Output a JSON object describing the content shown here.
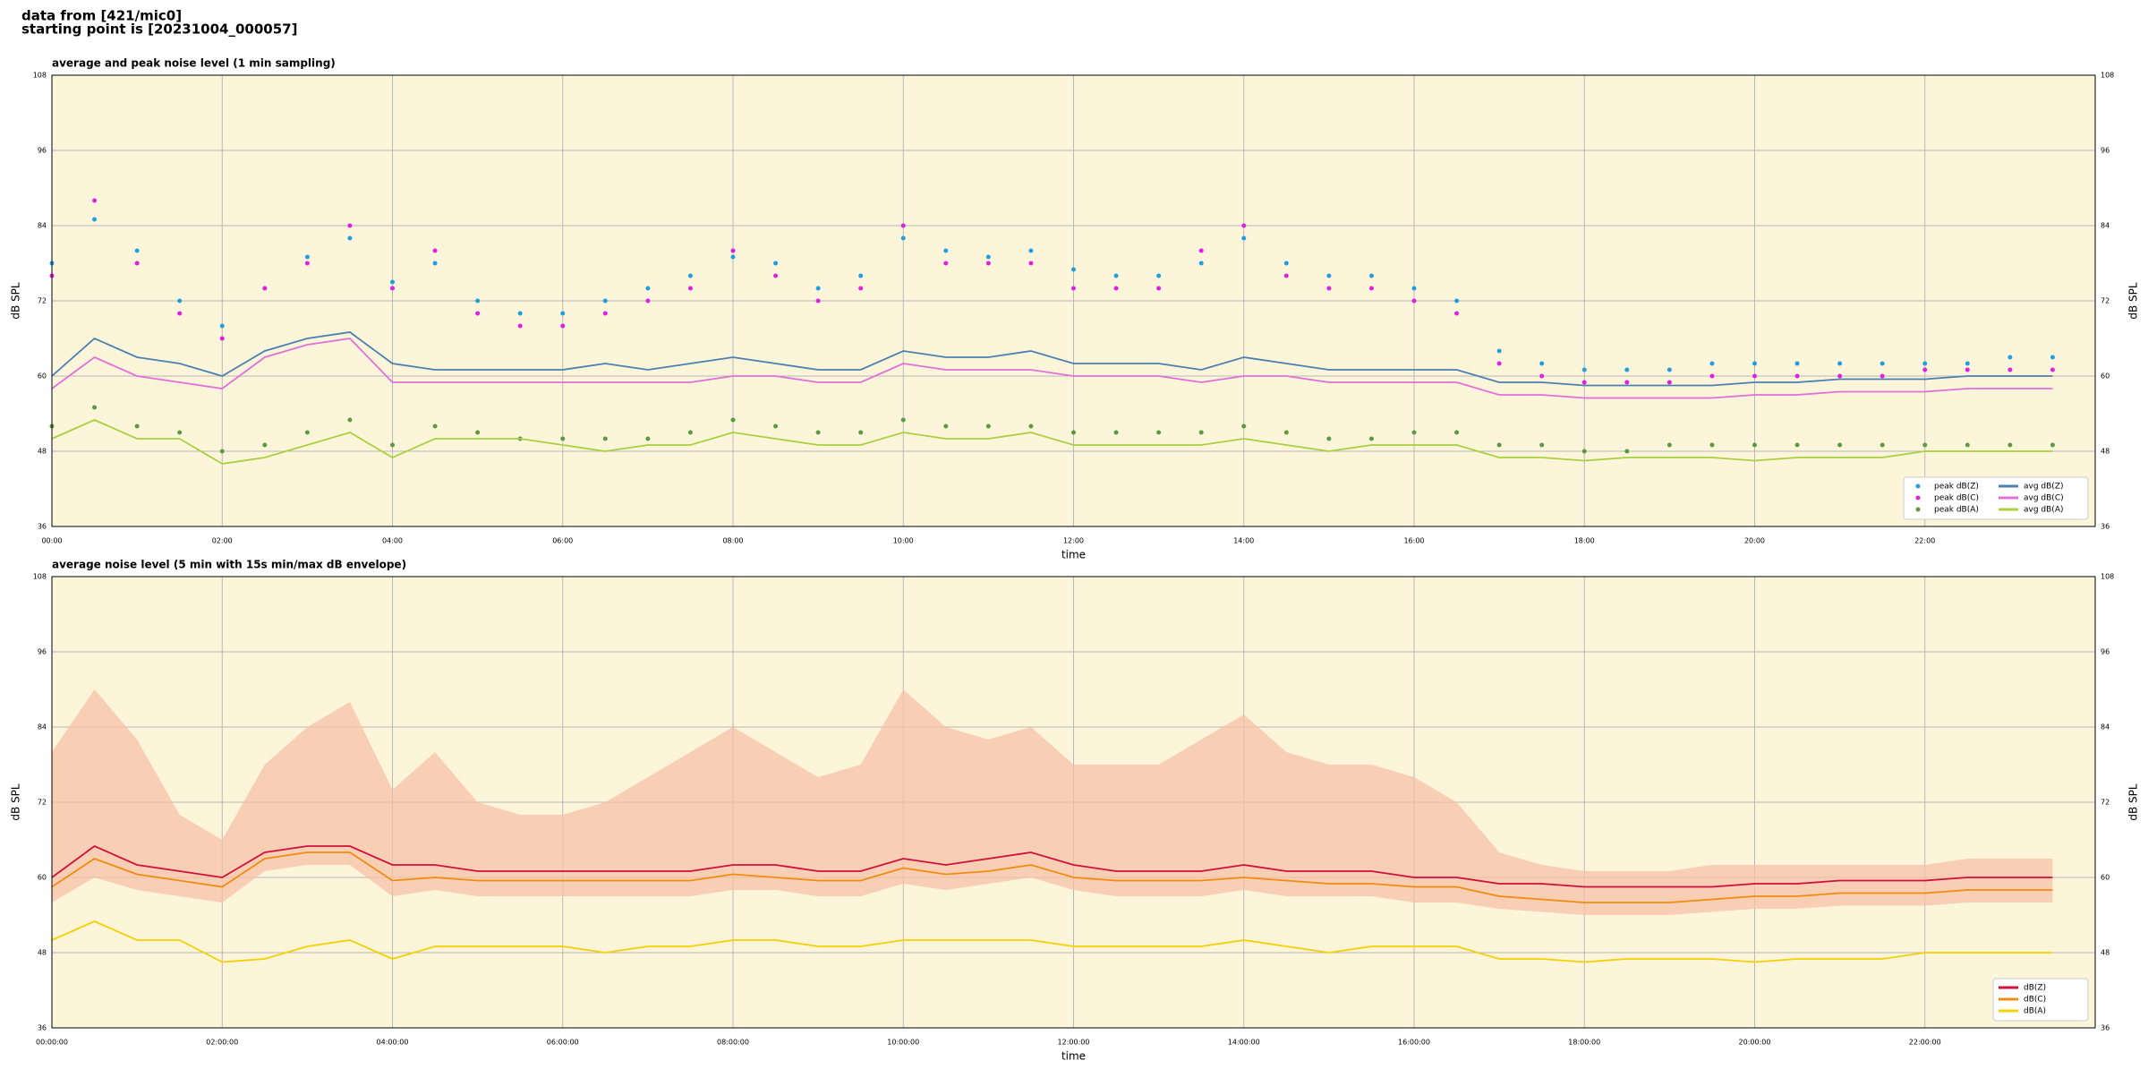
{
  "header": {
    "line1": "data from [421/mic0]",
    "line2": "starting point is [20231004_000057]"
  },
  "chart_data": [
    {
      "type": "line",
      "title": "average and peak noise level (1 min sampling)",
      "xlabel": "time",
      "ylabel": "dB SPL",
      "x": [
        0,
        0.5,
        1,
        1.5,
        2,
        2.5,
        3,
        3.5,
        4,
        4.5,
        5,
        5.5,
        6,
        6.5,
        7,
        7.5,
        8,
        8.5,
        9,
        9.5,
        10,
        10.5,
        11,
        11.5,
        12,
        12.5,
        13,
        13.5,
        14,
        14.5,
        15,
        15.5,
        16,
        16.5,
        17,
        17.5,
        18,
        18.5,
        19,
        19.5,
        20,
        20.5,
        21,
        21.5,
        22,
        22.5,
        23,
        23.5
      ],
      "xlim": [
        0,
        24
      ],
      "xticks": [
        {
          "value": 0,
          "label": "00:00"
        },
        {
          "value": 2,
          "label": "02:00"
        },
        {
          "value": 4,
          "label": "04:00"
        },
        {
          "value": 6,
          "label": "06:00"
        },
        {
          "value": 8,
          "label": "08:00"
        },
        {
          "value": 10,
          "label": "10:00"
        },
        {
          "value": 12,
          "label": "12:00"
        },
        {
          "value": 14,
          "label": "14:00"
        },
        {
          "value": 16,
          "label": "16:00"
        },
        {
          "value": 18,
          "label": "18:00"
        },
        {
          "value": 20,
          "label": "20:00"
        },
        {
          "value": 22,
          "label": "22:00"
        }
      ],
      "ylim": [
        36,
        108
      ],
      "yticks": [
        36,
        48,
        60,
        72,
        84,
        96,
        108
      ],
      "grid": true,
      "legend": "lower right",
      "legend_columns": 2,
      "series": [
        {
          "name": "peak dB(Z)",
          "type": "scatter",
          "color": "#1f9fe0",
          "values": [
            78,
            85,
            80,
            72,
            68,
            74,
            79,
            82,
            75,
            78,
            72,
            70,
            70,
            72,
            74,
            76,
            79,
            78,
            74,
            76,
            82,
            80,
            79,
            80,
            77,
            76,
            76,
            78,
            82,
            78,
            76,
            76,
            74,
            72,
            64,
            62,
            61,
            61,
            61,
            62,
            62,
            62,
            62,
            62,
            62,
            62,
            63,
            63
          ]
        },
        {
          "name": "peak dB(C)",
          "type": "scatter",
          "color": "#e020e0",
          "values": [
            76,
            88,
            78,
            70,
            66,
            74,
            78,
            84,
            74,
            80,
            70,
            68,
            68,
            70,
            72,
            74,
            80,
            76,
            72,
            74,
            84,
            78,
            78,
            78,
            74,
            74,
            74,
            80,
            84,
            76,
            74,
            74,
            72,
            70,
            62,
            60,
            59,
            59,
            59,
            60,
            60,
            60,
            60,
            60,
            61,
            61,
            61,
            61
          ]
        },
        {
          "name": "peak dB(A)",
          "type": "scatter",
          "color": "#5a9a40",
          "values": [
            52,
            55,
            52,
            51,
            48,
            49,
            51,
            53,
            49,
            52,
            51,
            50,
            50,
            50,
            50,
            51,
            53,
            52,
            51,
            51,
            53,
            52,
            52,
            52,
            51,
            51,
            51,
            51,
            52,
            51,
            50,
            50,
            51,
            51,
            49,
            49,
            48,
            48,
            49,
            49,
            49,
            49,
            49,
            49,
            49,
            49,
            49,
            49
          ]
        },
        {
          "name": "avg dB(Z)",
          "type": "line",
          "color": "#4a80b0",
          "values": [
            60,
            66,
            63,
            62,
            60,
            64,
            66,
            67,
            62,
            61,
            61,
            61,
            61,
            62,
            61,
            62,
            63,
            62,
            61,
            61,
            64,
            63,
            63,
            64,
            62,
            62,
            62,
            61,
            63,
            62,
            61,
            61,
            61,
            61,
            59,
            59,
            58.5,
            58.5,
            58.5,
            58.5,
            59,
            59,
            59.5,
            59.5,
            59.5,
            60,
            60,
            60
          ]
        },
        {
          "name": "avg dB(C)",
          "type": "line",
          "color": "#e070d8",
          "values": [
            58,
            63,
            60,
            59,
            58,
            63,
            65,
            66,
            59,
            59,
            59,
            59,
            59,
            59,
            59,
            59,
            60,
            60,
            59,
            59,
            62,
            61,
            61,
            61,
            60,
            60,
            60,
            59,
            60,
            60,
            59,
            59,
            59,
            59,
            57,
            57,
            56.5,
            56.5,
            56.5,
            56.5,
            57,
            57,
            57.5,
            57.5,
            57.5,
            58,
            58,
            58
          ]
        },
        {
          "name": "avg dB(A)",
          "type": "line",
          "color": "#a8d040",
          "values": [
            50,
            53,
            50,
            50,
            46,
            47,
            49,
            51,
            47,
            50,
            50,
            50,
            49,
            48,
            49,
            49,
            51,
            50,
            49,
            49,
            51,
            50,
            50,
            51,
            49,
            49,
            49,
            49,
            50,
            49,
            48,
            49,
            49,
            49,
            47,
            47,
            46.5,
            47,
            47,
            47,
            46.5,
            47,
            47,
            47,
            48,
            48,
            48,
            48
          ]
        }
      ]
    },
    {
      "type": "line",
      "title": "average noise level (5 min with 15s min/max dB envelope)",
      "xlabel": "time",
      "ylabel": "dB SPL",
      "x": [
        0,
        0.5,
        1,
        1.5,
        2,
        2.5,
        3,
        3.5,
        4,
        4.5,
        5,
        5.5,
        6,
        6.5,
        7,
        7.5,
        8,
        8.5,
        9,
        9.5,
        10,
        10.5,
        11,
        11.5,
        12,
        12.5,
        13,
        13.5,
        14,
        14.5,
        15,
        15.5,
        16,
        16.5,
        17,
        17.5,
        18,
        18.5,
        19,
        19.5,
        20,
        20.5,
        21,
        21.5,
        22,
        22.5,
        23,
        23.5
      ],
      "xlim": [
        0,
        24
      ],
      "xticks": [
        {
          "value": 0,
          "label": "00:00:00"
        },
        {
          "value": 2,
          "label": "02:00:00"
        },
        {
          "value": 4,
          "label": "04:00:00"
        },
        {
          "value": 6,
          "label": "06:00:00"
        },
        {
          "value": 8,
          "label": "08:00:00"
        },
        {
          "value": 10,
          "label": "10:00:00"
        },
        {
          "value": 12,
          "label": "12:00:00"
        },
        {
          "value": 14,
          "label": "14:00:00"
        },
        {
          "value": 16,
          "label": "16:00:00"
        },
        {
          "value": 18,
          "label": "18:00:00"
        },
        {
          "value": 20,
          "label": "20:00:00"
        },
        {
          "value": 22,
          "label": "22:00:00"
        }
      ],
      "ylim": [
        36,
        108
      ],
      "yticks": [
        36,
        48,
        60,
        72,
        84,
        96,
        108
      ],
      "grid": true,
      "legend": "lower right",
      "legend_columns": 1,
      "envelope": {
        "color": "#f5c0a8",
        "max": [
          80,
          90,
          82,
          70,
          66,
          78,
          84,
          88,
          74,
          80,
          72,
          70,
          70,
          72,
          76,
          80,
          84,
          80,
          76,
          78,
          90,
          84,
          82,
          84,
          78,
          78,
          78,
          82,
          86,
          80,
          78,
          78,
          76,
          72,
          64,
          62,
          61,
          61,
          61,
          62,
          62,
          62,
          62,
          62,
          62,
          63,
          63,
          63
        ],
        "min": [
          56,
          60,
          58,
          57,
          56,
          61,
          62,
          62,
          57,
          58,
          57,
          57,
          57,
          57,
          57,
          57,
          58,
          58,
          57,
          57,
          59,
          58,
          59,
          60,
          58,
          57,
          57,
          57,
          58,
          57,
          57,
          57,
          56,
          56,
          55,
          54.5,
          54,
          54,
          54,
          54.5,
          55,
          55,
          55.5,
          55.5,
          55.5,
          56,
          56,
          56
        ]
      },
      "series": [
        {
          "name": "dB(Z)",
          "type": "line",
          "color": "#d0103a",
          "values": [
            60,
            65,
            62,
            61,
            60,
            64,
            65,
            65,
            62,
            62,
            61,
            61,
            61,
            61,
            61,
            61,
            62,
            62,
            61,
            61,
            63,
            62,
            63,
            64,
            62,
            61,
            61,
            61,
            62,
            61,
            61,
            61,
            60,
            60,
            59,
            59,
            58.5,
            58.5,
            58.5,
            58.5,
            59,
            59,
            59.5,
            59.5,
            59.5,
            60,
            60,
            60
          ]
        },
        {
          "name": "dB(C)",
          "type": "line",
          "color": "#f08c10",
          "values": [
            58.5,
            63,
            60.5,
            59.5,
            58.5,
            63,
            64,
            64,
            59.5,
            60,
            59.5,
            59.5,
            59.5,
            59.5,
            59.5,
            59.5,
            60.5,
            60,
            59.5,
            59.5,
            61.5,
            60.5,
            61,
            62,
            60,
            59.5,
            59.5,
            59.5,
            60,
            59.5,
            59,
            59,
            58.5,
            58.5,
            57,
            56.5,
            56,
            56,
            56,
            56.5,
            57,
            57,
            57.5,
            57.5,
            57.5,
            58,
            58,
            58
          ]
        },
        {
          "name": "dB(A)",
          "type": "line",
          "color": "#f5d000",
          "values": [
            50,
            53,
            50,
            50,
            46.5,
            47,
            49,
            50,
            47,
            49,
            49,
            49,
            49,
            48,
            49,
            49,
            50,
            50,
            49,
            49,
            50,
            50,
            50,
            50,
            49,
            49,
            49,
            49,
            50,
            49,
            48,
            49,
            49,
            49,
            47,
            47,
            46.5,
            47,
            47,
            47,
            46.5,
            47,
            47,
            47,
            48,
            48,
            48,
            48
          ]
        }
      ]
    }
  ]
}
